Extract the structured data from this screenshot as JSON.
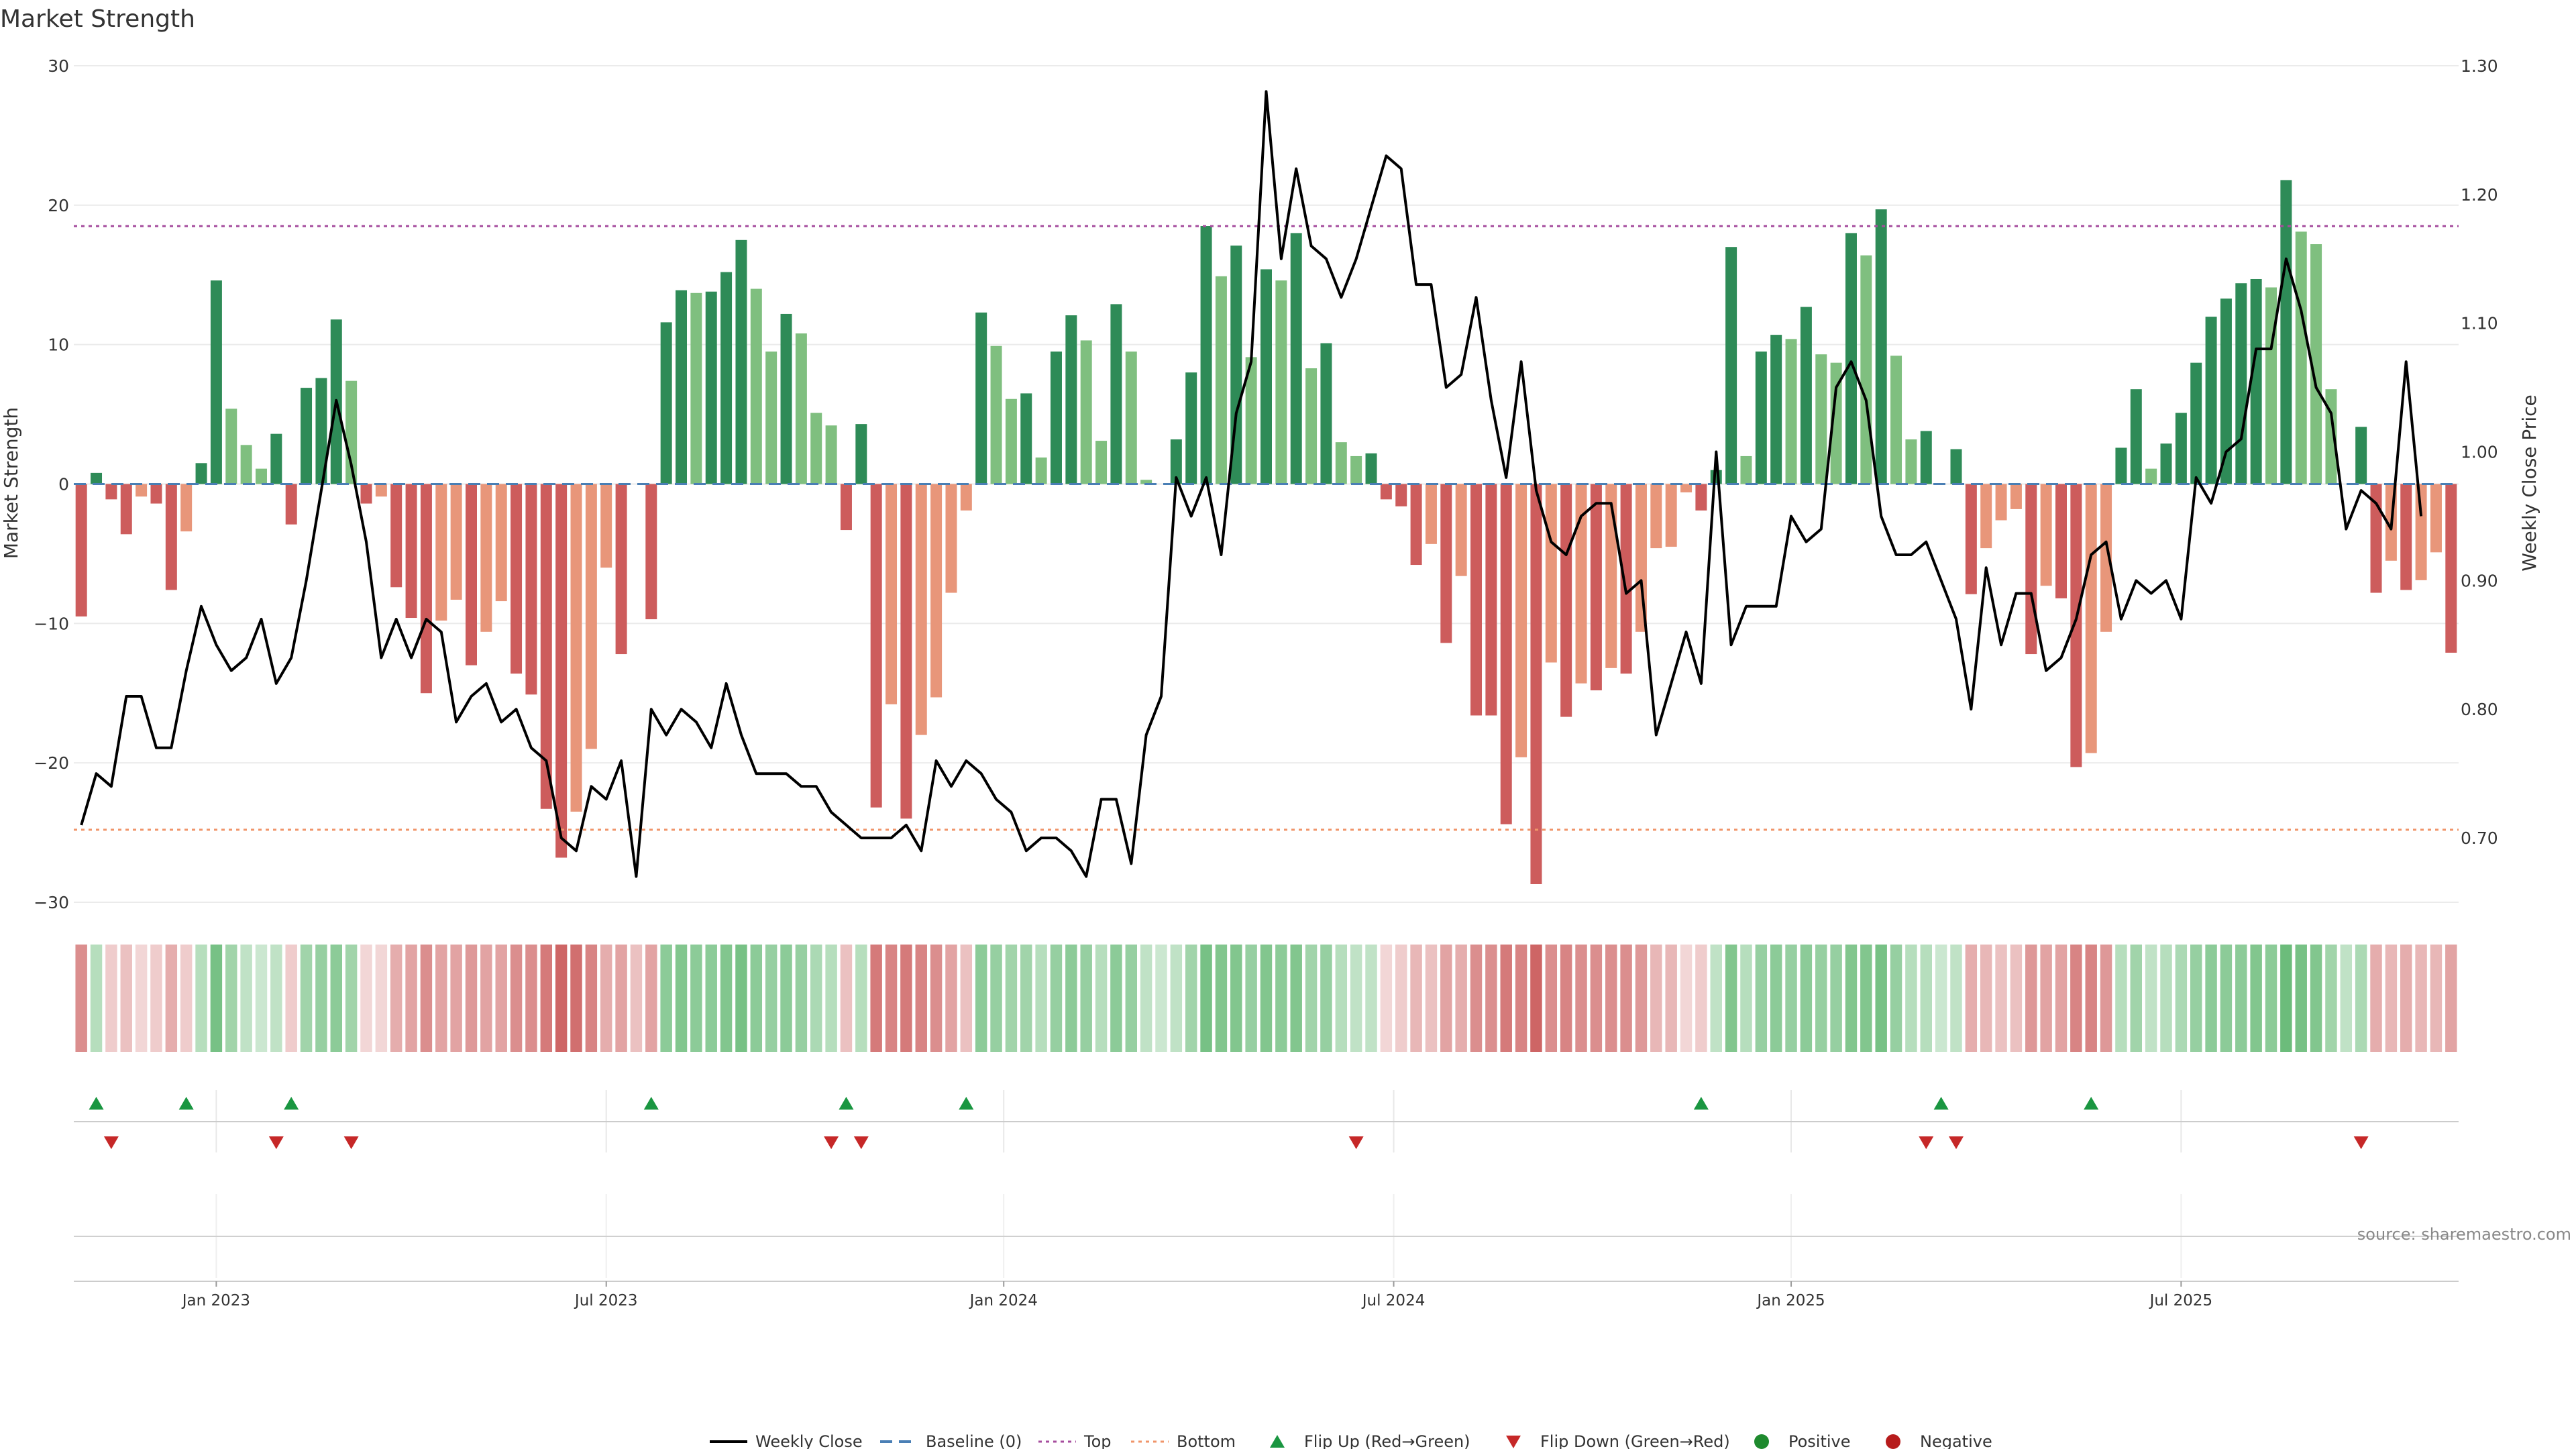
{
  "chart_data": {
    "type": "bar",
    "title": "Market Strength",
    "ylabel": "Market Strength",
    "y2label": "Weekly Close Price",
    "ylim": [
      -30,
      30
    ],
    "y2lim": [
      0.65,
      1.3
    ],
    "yticks": [
      30,
      20,
      10,
      0,
      -10,
      -20,
      -30
    ],
    "y2ticks": [
      "1.30",
      "1.20",
      "1.10",
      "1.00",
      "0.90",
      "0.80",
      "0.70"
    ],
    "y2tick_values": [
      1.3,
      1.2,
      1.1,
      1.0,
      0.9,
      0.8,
      0.7
    ],
    "top_threshold": 18.5,
    "bottom_threshold": -24.8,
    "xticks": [
      {
        "label": "Jan 2023",
        "week": 9
      },
      {
        "label": "Jul 2023",
        "week": 35
      },
      {
        "label": "Jan 2024",
        "week": 61.5
      },
      {
        "label": "Jul 2024",
        "week": 87.5
      },
      {
        "label": "Jan 2025",
        "week": 114
      },
      {
        "label": "Jul 2025",
        "week": 140
      }
    ],
    "first_week": "2022-11",
    "strength": [
      -9.5,
      0.8,
      -1.1,
      -3.6,
      -0.9,
      -1.4,
      -7.6,
      -3.4,
      1.5,
      14.6,
      5.4,
      2.8,
      1.1,
      3.6,
      -2.9,
      6.9,
      7.6,
      11.8,
      7.4,
      -1.4,
      -0.9,
      -7.4,
      -9.6,
      -15.0,
      -9.8,
      -8.3,
      -13.0,
      -10.6,
      -8.4,
      -13.6,
      -15.1,
      -23.3,
      -26.8,
      -23.5,
      -19.0,
      -6.0,
      -12.2,
      0,
      -9.7,
      11.6,
      13.9,
      13.7,
      13.8,
      15.2,
      17.5,
      14.0,
      9.5,
      12.2,
      10.8,
      5.1,
      4.2,
      -3.3,
      4.3,
      -23.2,
      -15.8,
      -24.0,
      -18.0,
      -15.3,
      -7.8,
      -1.9,
      12.3,
      9.9,
      6.1,
      6.5,
      1.9,
      9.5,
      12.1,
      10.3,
      3.1,
      12.9,
      9.5,
      0.3,
      0,
      3.2,
      8.0,
      18.5,
      14.9,
      17.1,
      9.1,
      15.4,
      14.6,
      18.0,
      8.3,
      10.1,
      3.0,
      2.0,
      2.2,
      -1.1,
      -1.6,
      -5.8,
      -4.3,
      -11.4,
      -6.6,
      -16.6,
      -16.6,
      -24.4,
      -19.6,
      -28.7,
      -12.8,
      -16.7,
      -14.3,
      -14.8,
      -13.2,
      -13.6,
      -10.6,
      -4.6,
      -4.5,
      -0.6,
      -1.9,
      1.0,
      17.0,
      2.0,
      9.5,
      10.7,
      10.4,
      12.7,
      9.3,
      8.7,
      18.0,
      16.4,
      19.7,
      9.2,
      3.2,
      3.8,
      0,
      2.5,
      -7.9,
      -4.6,
      -2.6,
      -1.8,
      -12.2,
      -7.3,
      -8.2,
      -20.3,
      -19.3,
      -10.6,
      2.6,
      6.8,
      1.1,
      2.9,
      5.1,
      8.7,
      12.0,
      13.3,
      14.4,
      14.7,
      14.1,
      21.8,
      18.1,
      17.2,
      6.8,
      0,
      4.1,
      -7.8,
      -5.5,
      -7.6,
      -6.9,
      -4.9,
      -12.1
    ],
    "close": [
      0.71,
      0.75,
      0.74,
      0.81,
      0.81,
      0.77,
      0.77,
      0.83,
      0.88,
      0.85,
      0.83,
      0.84,
      0.87,
      0.82,
      0.84,
      0.9,
      0.97,
      1.04,
      0.99,
      0.93,
      0.84,
      0.87,
      0.84,
      0.87,
      0.86,
      0.79,
      0.81,
      0.82,
      0.79,
      0.8,
      0.77,
      0.76,
      0.7,
      0.69,
      0.74,
      0.73,
      0.76,
      0.67,
      0.8,
      0.78,
      0.8,
      0.79,
      0.77,
      0.82,
      0.78,
      0.75,
      0.75,
      0.75,
      0.74,
      0.74,
      0.72,
      0.71,
      0.7,
      0.7,
      0.7,
      0.71,
      0.69,
      0.76,
      0.74,
      0.76,
      0.75,
      0.73,
      0.72,
      0.69,
      0.7,
      0.7,
      0.69,
      0.67,
      0.73,
      0.73,
      0.68,
      0.78,
      0.81,
      0.98,
      0.95,
      0.98,
      0.92,
      1.03,
      1.07,
      1.28,
      1.15,
      1.22,
      1.16,
      1.15,
      1.12,
      1.15,
      1.19,
      1.23,
      1.22,
      1.13,
      1.13,
      1.05,
      1.06,
      1.12,
      1.04,
      0.98,
      1.07,
      0.97,
      0.93,
      0.92,
      0.95,
      0.96,
      0.96,
      0.89,
      0.9,
      0.78,
      0.82,
      0.86,
      0.82,
      1.0,
      0.85,
      0.88,
      0.88,
      0.88,
      0.95,
      0.93,
      0.94,
      1.05,
      1.07,
      1.04,
      0.95,
      0.92,
      0.92,
      0.93,
      0.9,
      0.87,
      0.8,
      0.91,
      0.85,
      0.89,
      0.89,
      0.83,
      0.84,
      0.87,
      0.92,
      0.93,
      0.87,
      0.9,
      0.89,
      0.9,
      0.87,
      0.98,
      0.96,
      1.0,
      1.01,
      1.08,
      1.08,
      1.15,
      1.11,
      1.05,
      1.03,
      0.94,
      0.97,
      0.96,
      0.94,
      1.07,
      0.95
    ],
    "heat_strip": [
      -0.55,
      0.35,
      -0.25,
      -0.3,
      -0.2,
      -0.25,
      -0.4,
      -0.25,
      0.35,
      0.65,
      0.45,
      0.3,
      0.25,
      0.3,
      -0.25,
      0.45,
      0.5,
      0.55,
      0.45,
      -0.2,
      -0.2,
      -0.4,
      -0.45,
      -0.55,
      -0.45,
      -0.45,
      -0.5,
      -0.45,
      -0.45,
      -0.55,
      -0.55,
      -0.65,
      -0.75,
      -0.7,
      -0.6,
      -0.4,
      -0.45,
      -0.3,
      -0.45,
      0.55,
      0.6,
      0.55,
      0.55,
      0.6,
      0.65,
      0.55,
      0.5,
      0.55,
      0.5,
      0.4,
      0.35,
      -0.3,
      0.35,
      -0.65,
      -0.6,
      -0.65,
      -0.6,
      -0.55,
      -0.45,
      -0.3,
      0.55,
      0.5,
      0.45,
      0.45,
      0.35,
      0.5,
      0.55,
      0.5,
      0.35,
      0.55,
      0.5,
      0.3,
      0.25,
      0.3,
      0.45,
      0.65,
      0.6,
      0.6,
      0.5,
      0.6,
      0.55,
      0.6,
      0.45,
      0.5,
      0.35,
      0.3,
      0.3,
      -0.2,
      -0.25,
      -0.35,
      -0.3,
      -0.45,
      -0.4,
      -0.55,
      -0.55,
      -0.65,
      -0.6,
      -0.75,
      -0.55,
      -0.6,
      -0.55,
      -0.55,
      -0.55,
      -0.55,
      -0.5,
      -0.35,
      -0.35,
      -0.2,
      -0.25,
      0.3,
      0.6,
      0.35,
      0.5,
      0.55,
      0.5,
      0.55,
      0.5,
      0.5,
      0.6,
      0.6,
      0.65,
      0.5,
      0.35,
      0.35,
      0.25,
      0.3,
      -0.4,
      -0.35,
      -0.3,
      -0.3,
      -0.5,
      -0.45,
      -0.45,
      -0.6,
      -0.6,
      -0.5,
      0.35,
      0.45,
      0.3,
      0.35,
      0.4,
      0.5,
      0.55,
      0.55,
      0.55,
      0.6,
      0.55,
      0.7,
      0.65,
      0.6,
      0.45,
      0.3,
      0.4,
      -0.4,
      -0.35,
      -0.4,
      -0.35,
      -0.35,
      -0.45
    ],
    "flip_up_weeks": [
      1,
      7,
      14,
      38,
      51,
      59,
      108,
      124,
      134
    ],
    "flip_down_weeks": [
      2,
      13,
      18,
      50,
      52,
      85,
      123,
      125,
      152
    ],
    "legend": [
      {
        "label": "Weekly Close",
        "kind": "line",
        "color": "#000000"
      },
      {
        "label": "Baseline (0)",
        "kind": "dash",
        "color": "#4a7fb5"
      },
      {
        "label": "Top",
        "kind": "dot",
        "color": "#a64d9e"
      },
      {
        "label": "Bottom",
        "kind": "dot",
        "color": "#f0956a"
      },
      {
        "label": "Flip Up (Red→Green)",
        "kind": "tri-up",
        "color": "#1a9641"
      },
      {
        "label": "Flip Down (Green→Red)",
        "kind": "tri-down",
        "color": "#c62828"
      },
      {
        "label": "Positive",
        "kind": "circle",
        "color": "#1e8a2e"
      },
      {
        "label": "Negative",
        "kind": "circle",
        "color": "#b71c1c"
      }
    ],
    "source": "source: sharemaestro.com",
    "colors": {
      "pos_strong": "#2e8b57",
      "pos_light": "#7fbf7f",
      "neg_strong": "#cd5c5c",
      "neg_light": "#e8967a"
    }
  }
}
